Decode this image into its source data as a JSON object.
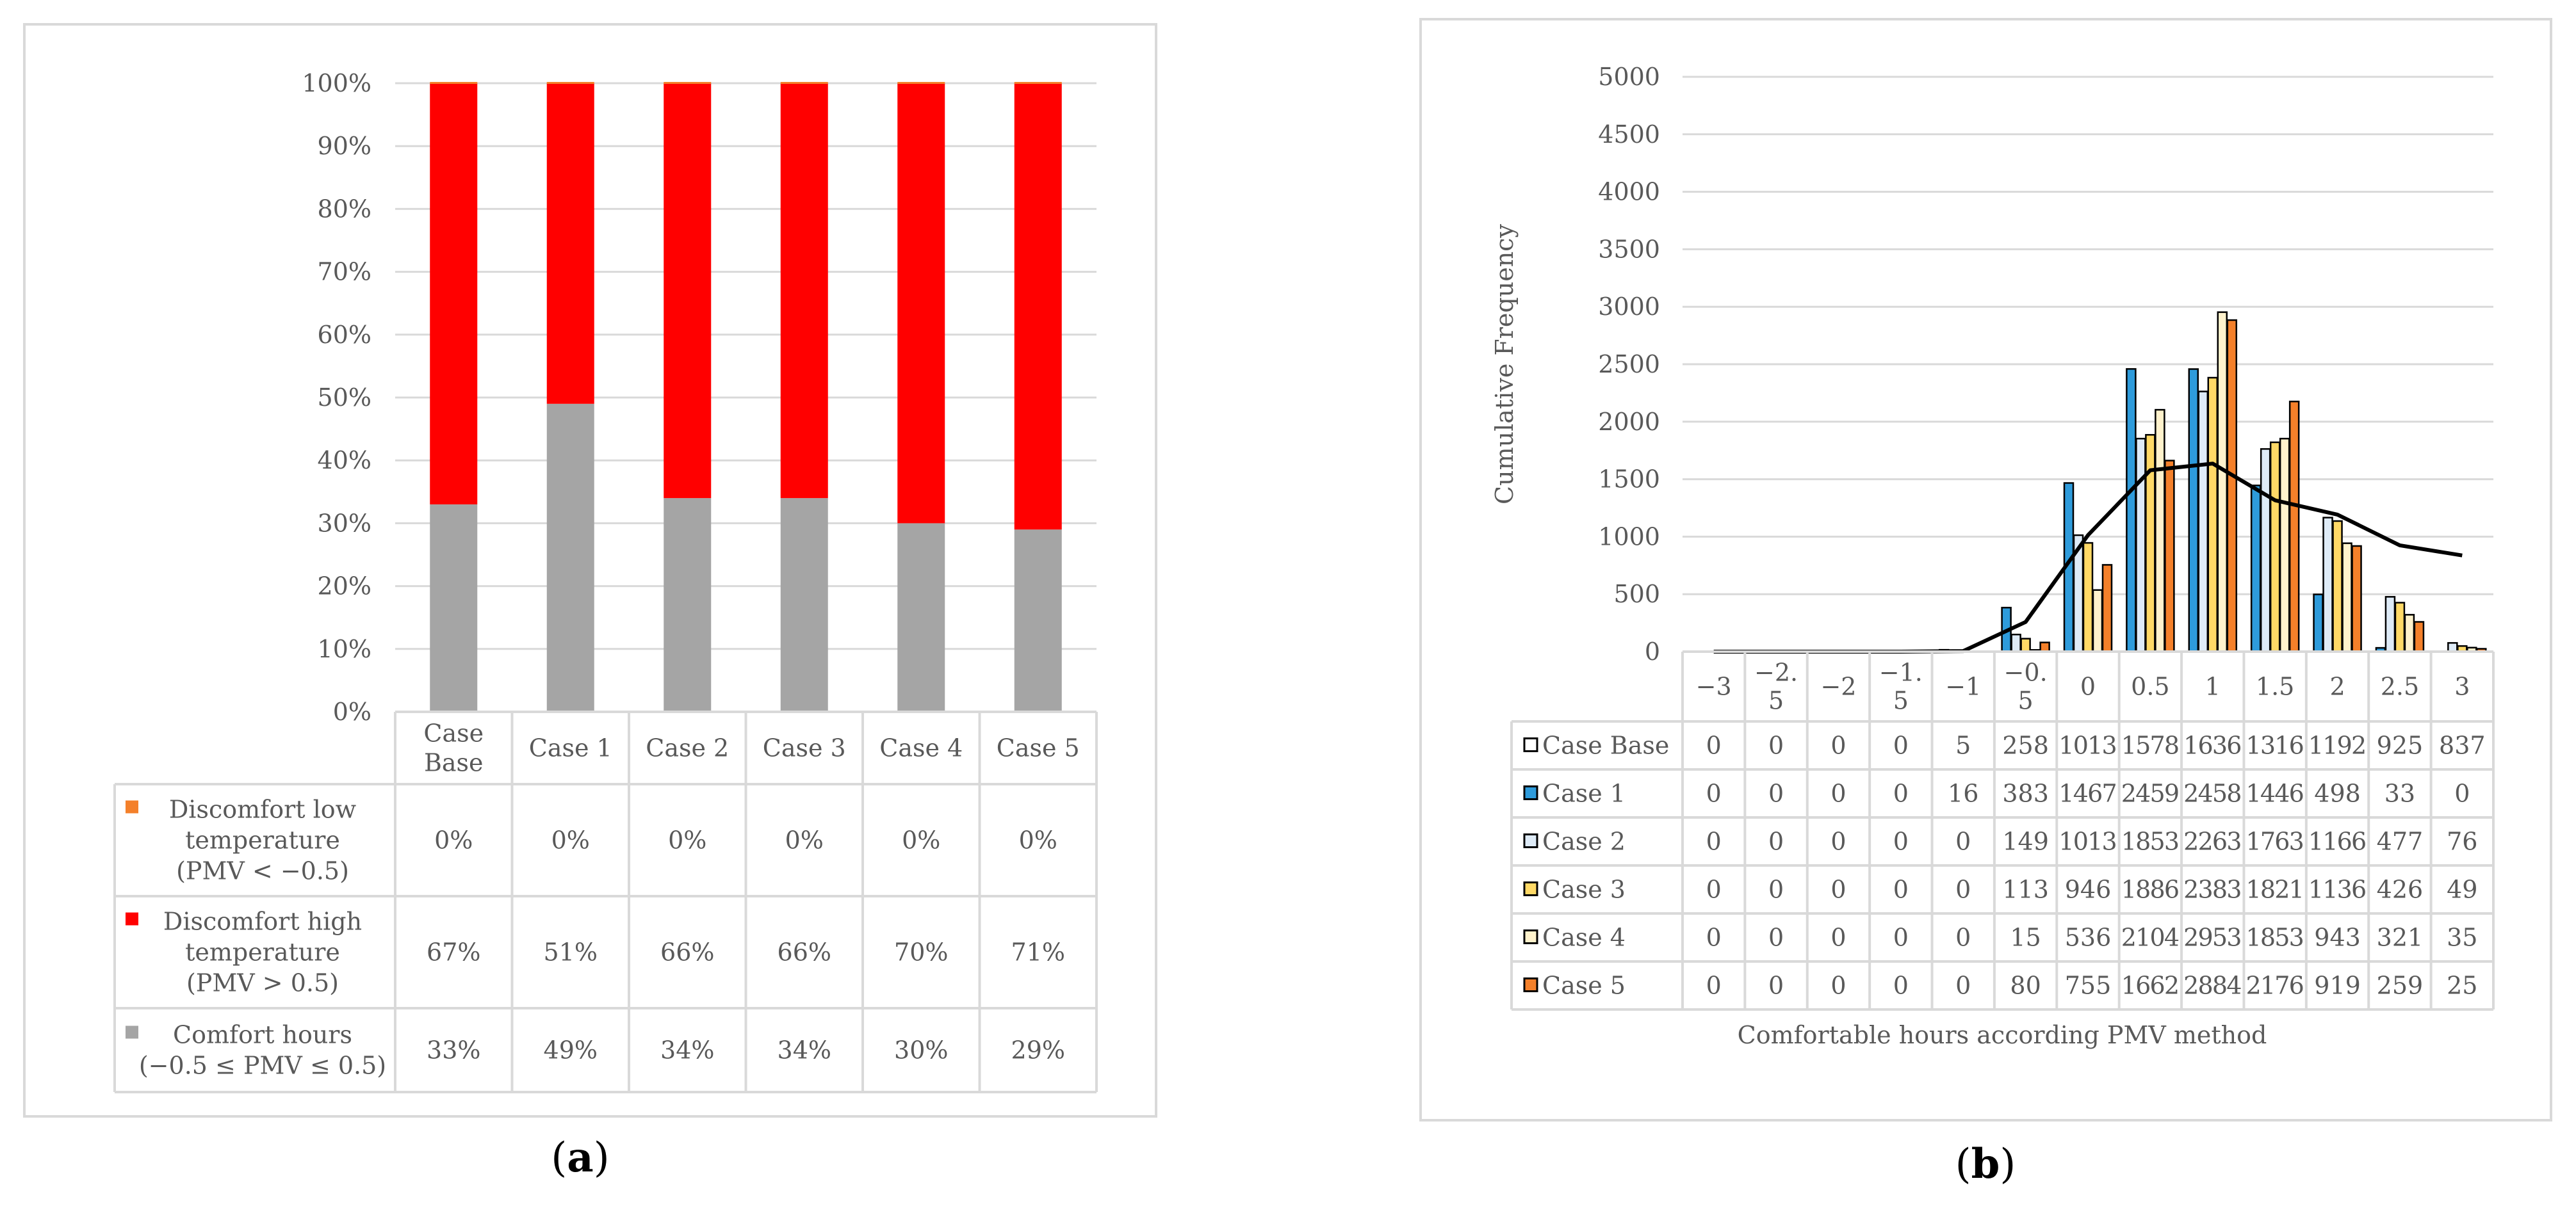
{
  "chart_data": [
    {
      "type": "bar",
      "stacked": true,
      "percent_stacked": true,
      "panel_label": "a",
      "categories": [
        "Case Base",
        "Case 1",
        "Case 2",
        "Case 3",
        "Case 4",
        "Case 5"
      ],
      "series": [
        {
          "name": "Discomfort low temperature (PMV < −0.5)",
          "legend_lines": [
            "Discomfort low",
            "temperature",
            "(PMV < −0.5)"
          ],
          "color": "#F4802A",
          "values": [
            0,
            0,
            0,
            0,
            0,
            0
          ],
          "labels": [
            "0%",
            "0%",
            "0%",
            "0%",
            "0%",
            "0%"
          ]
        },
        {
          "name": "Discomfort high temperature (PMV > 0.5)",
          "legend_lines": [
            "Discomfort high",
            "temperature",
            "(PMV  >  0.5)"
          ],
          "color": "#FF0000",
          "values": [
            67,
            51,
            66,
            66,
            70,
            71
          ],
          "labels": [
            "67%",
            "51%",
            "66%",
            "66%",
            "70%",
            "71%"
          ]
        },
        {
          "name": "Comfort hours (−0.5 ≤ PMV ≤ 0.5)",
          "legend_lines": [
            "Comfort hours",
            "(−0.5 ≤ PMV ≤ 0.5)"
          ],
          "color": "#A5A5A5",
          "values": [
            33,
            49,
            34,
            34,
            30,
            29
          ],
          "labels": [
            "33%",
            "49%",
            "34%",
            "34%",
            "30%",
            "29%"
          ]
        }
      ],
      "category_lines": [
        [
          "Case",
          "Base"
        ],
        [
          "Case 1"
        ],
        [
          "Case 2"
        ],
        [
          "Case 3"
        ],
        [
          "Case 4"
        ],
        [
          "Case 5"
        ]
      ],
      "ylim": [
        0,
        100
      ],
      "yticks": [
        "0%",
        "10%",
        "20%",
        "30%",
        "40%",
        "50%",
        "60%",
        "70%",
        "80%",
        "90%",
        "100%"
      ],
      "grid": true,
      "data_table": true
    },
    {
      "type": "bar",
      "panel_label": "b",
      "ylabel": "Cumulative Frequency",
      "xlabel": "Comfortable hours according PMV method",
      "categories": [
        "−3",
        "−2.5",
        "−2",
        "−1.5",
        "−1",
        "−0.5",
        "0",
        "0.5",
        "1",
        "1.5",
        "2",
        "2.5",
        "3"
      ],
      "category_lines": [
        [
          "−3"
        ],
        [
          "−2.",
          "5"
        ],
        [
          "−2"
        ],
        [
          "−1.",
          "5"
        ],
        [
          "−1"
        ],
        [
          "−0.",
          "5"
        ],
        [
          "0"
        ],
        [
          "0.5"
        ],
        [
          "1"
        ],
        [
          "1.5"
        ],
        [
          "2"
        ],
        [
          "2.5"
        ],
        [
          "3"
        ]
      ],
      "series": [
        {
          "name": "Case Base",
          "type": "line",
          "color": "#000000",
          "values": [
            0,
            0,
            0,
            0,
            5,
            258,
            1013,
            1578,
            1636,
            1316,
            1192,
            925,
            837
          ]
        },
        {
          "name": "Case 1",
          "type": "bar",
          "color": "#2E9BDB",
          "values": [
            0,
            0,
            0,
            0,
            16,
            383,
            1467,
            2459,
            2458,
            1446,
            498,
            33,
            0
          ]
        },
        {
          "name": "Case 2",
          "type": "bar",
          "color": "#DEEBF7",
          "values": [
            0,
            0,
            0,
            0,
            0,
            149,
            1013,
            1853,
            2263,
            1763,
            1166,
            477,
            76
          ]
        },
        {
          "name": "Case 3",
          "type": "bar",
          "color": "#FFD966",
          "values": [
            0,
            0,
            0,
            0,
            0,
            113,
            946,
            1886,
            2383,
            1821,
            1136,
            426,
            49
          ]
        },
        {
          "name": "Case 4",
          "type": "bar",
          "color": "#FFF2CC",
          "values": [
            0,
            0,
            0,
            0,
            0,
            15,
            536,
            2104,
            2953,
            1853,
            943,
            321,
            35
          ]
        },
        {
          "name": "Case 5",
          "type": "bar",
          "color": "#F4802A",
          "values": [
            0,
            0,
            0,
            0,
            0,
            80,
            755,
            1662,
            2884,
            2176,
            919,
            259,
            25
          ]
        }
      ],
      "ylim": [
        0,
        5000
      ],
      "yticks": [
        "0",
        "500",
        "1000",
        "1500",
        "2000",
        "2500",
        "3000",
        "3500",
        "4000",
        "4500",
        "5000"
      ],
      "grid": true,
      "data_table": true
    }
  ]
}
